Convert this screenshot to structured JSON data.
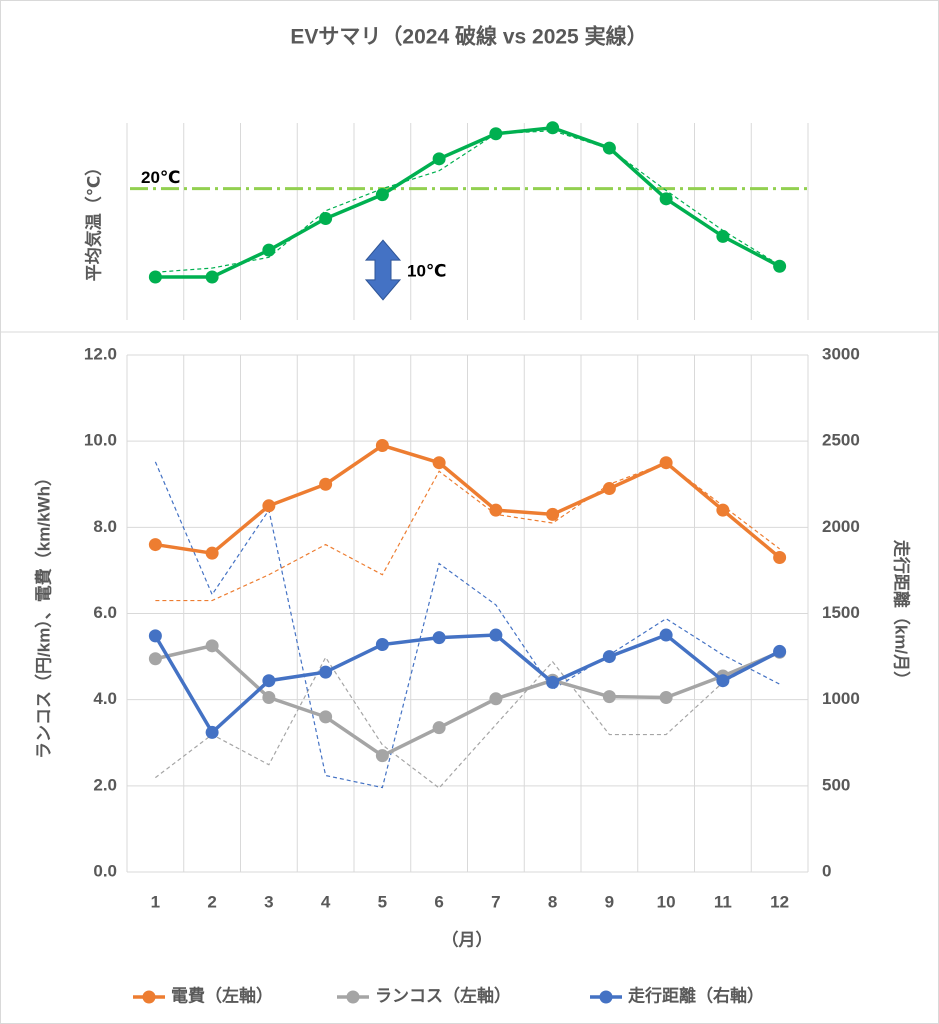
{
  "title": "EVサマリ（2024 破線 vs 2025 実線）",
  "chart_data": [
    {
      "type": "line",
      "y_label": "平均気温（℃）",
      "ylim": [
        -2,
        31
      ],
      "reference_line": {
        "value": 20,
        "label": "20℃",
        "color": "#92d050"
      },
      "scale_bar": {
        "value": 10,
        "label": "10℃",
        "color": "#4472c4"
      },
      "series": [
        {
          "color": "#00b050",
          "values": [
            5.2,
            5.2,
            9.7,
            15.0,
            19.0,
            25.0,
            29.2,
            30.2,
            26.8,
            18.3,
            12.0,
            7.0
          ],
          "values_2024": [
            6.0,
            6.7,
            8.5,
            16.3,
            20.0,
            23.0,
            29.2,
            29.7,
            26.7,
            19.7,
            13.0,
            7.2
          ]
        }
      ]
    },
    {
      "type": "line",
      "x_label": "（月）",
      "y_label": "ランコス（円/km）、電費（km/kWh）",
      "y2_label": "走行距離（km/月）",
      "categories": [
        "1",
        "2",
        "3",
        "4",
        "5",
        "6",
        "7",
        "8",
        "9",
        "10",
        "11",
        "12"
      ],
      "ylim": [
        0,
        12
      ],
      "yticks": [
        {
          "value": 0,
          "label": "0.0"
        },
        {
          "value": 2,
          "label": "2.0"
        },
        {
          "value": 4,
          "label": "4.0"
        },
        {
          "value": 6,
          "label": "6.0"
        },
        {
          "value": 8,
          "label": "8.0"
        },
        {
          "value": 10,
          "label": "10.0"
        },
        {
          "value": 12,
          "label": "12.0"
        }
      ],
      "y2lim": [
        0,
        3000
      ],
      "y2ticks": [
        0,
        500,
        1000,
        1500,
        2000,
        2500,
        3000
      ],
      "grid": true,
      "series": [
        {
          "name": "電費（左軸）",
          "color": "#ed7d31",
          "values": [
            7.6,
            7.4,
            8.5,
            9.0,
            9.9,
            9.5,
            8.4,
            8.3,
            8.9,
            9.5,
            8.4,
            7.3
          ],
          "values_2024": [
            6.3,
            6.3,
            6.9,
            7.6,
            6.9,
            9.3,
            8.3,
            8.1,
            9.0,
            9.5,
            8.5,
            7.5
          ]
        },
        {
          "name": "ランコス（左軸）",
          "color": "#a5a5a5",
          "values": [
            4.95,
            5.25,
            4.05,
            3.6,
            2.7,
            3.35,
            4.02,
            4.45,
            4.07,
            4.05,
            4.55,
            5.1
          ],
          "values_2024": [
            2.19,
            3.19,
            2.49,
            4.98,
            2.95,
            1.95,
            3.42,
            4.88,
            3.19,
            3.19,
            4.4,
            5.12
          ]
        },
        {
          "name": "走行距離（右軸）",
          "color": "#4472c4",
          "axis": "y2",
          "values": [
            1370,
            810,
            1110,
            1160,
            1320,
            1360,
            1375,
            1100,
            1250,
            1375,
            1110,
            1280
          ],
          "values_2024": [
            2380,
            1610,
            2100,
            560,
            490,
            1790,
            1550,
            1060,
            1260,
            1470,
            1260,
            1090
          ]
        }
      ]
    }
  ]
}
